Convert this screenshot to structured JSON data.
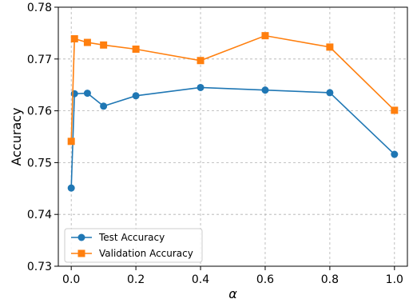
{
  "chart_data": {
    "type": "line",
    "title": "",
    "xlabel": "α",
    "ylabel": "Accuracy",
    "xlim": [
      -0.04,
      1.04
    ],
    "ylim": [
      0.73,
      0.78
    ],
    "xticks": [
      0.0,
      0.2,
      0.4,
      0.6,
      0.8,
      1.0
    ],
    "xtick_labels": [
      "0.0",
      "0.2",
      "0.4",
      "0.6",
      "0.8",
      "1.0"
    ],
    "yticks": [
      0.73,
      0.74,
      0.75,
      0.76,
      0.77,
      0.78
    ],
    "ytick_labels": [
      "0.73",
      "0.74",
      "0.75",
      "0.76",
      "0.77",
      "0.78"
    ],
    "grid": true,
    "legend_position": "lower-left",
    "series": [
      {
        "name": "Test Accuracy",
        "color": "#1f77b4",
        "marker": "circle",
        "x": [
          0.0,
          0.01,
          0.05,
          0.1,
          0.2,
          0.4,
          0.6,
          0.8,
          1.0
        ],
        "values": [
          0.7451,
          0.7633,
          0.7634,
          0.7609,
          0.7629,
          0.7645,
          0.764,
          0.7635,
          0.7516
        ]
      },
      {
        "name": "Validation Accuracy",
        "color": "#ff7f0e",
        "marker": "square",
        "x": [
          0.0,
          0.01,
          0.05,
          0.1,
          0.2,
          0.4,
          0.6,
          0.8,
          1.0
        ],
        "values": [
          0.7541,
          0.7739,
          0.7732,
          0.7727,
          0.7719,
          0.7697,
          0.7745,
          0.7723,
          0.7601
        ]
      }
    ]
  }
}
